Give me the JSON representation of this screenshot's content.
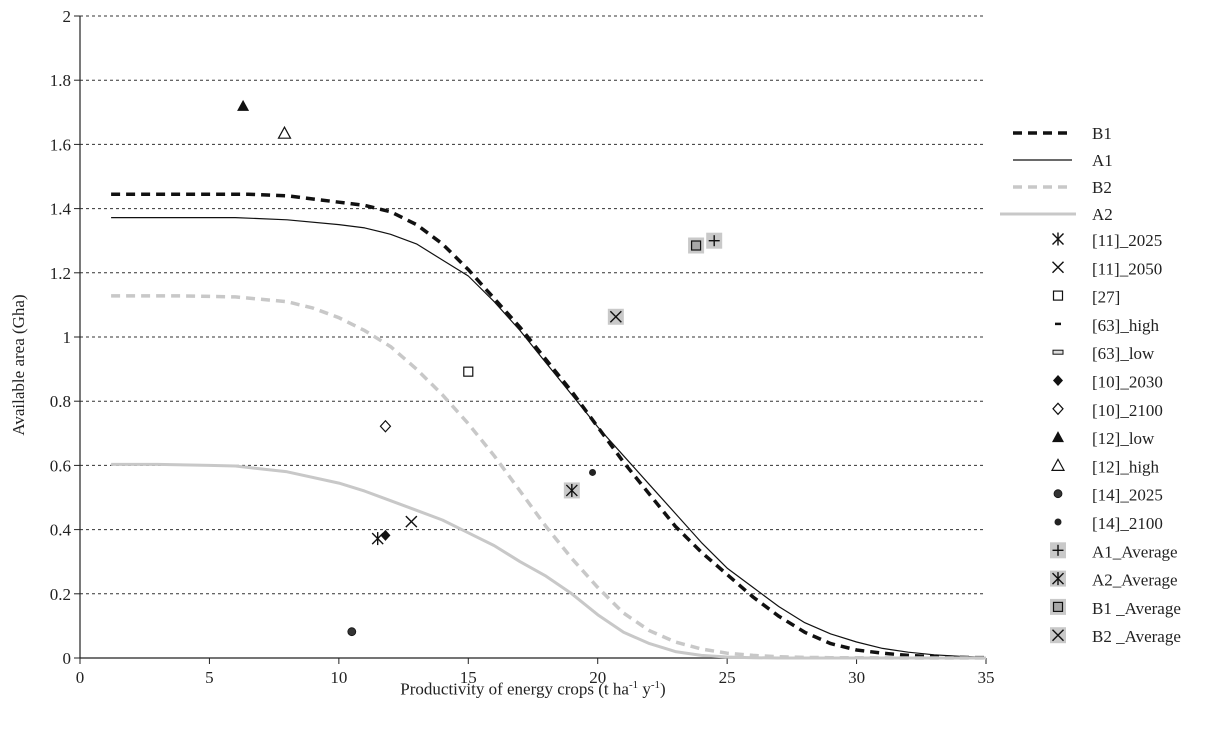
{
  "chart_data": {
    "type": "scatter",
    "xlabel_parts": {
      "pre": "Productivity of energy crops (t ha",
      "sup1": "-1",
      "mid": " y",
      "sup2": "-1",
      "post": ")"
    },
    "ylabel": "Available area (Gha)",
    "xlim": [
      0,
      35
    ],
    "ylim": [
      0,
      2
    ],
    "xticks": [
      "0",
      "5",
      "10",
      "15",
      "20",
      "25",
      "30",
      "35"
    ],
    "yticks": [
      "0",
      "0.2",
      "0.4",
      "0.6",
      "0.8",
      "1",
      "1.2",
      "1.4",
      "1.6",
      "1.8",
      "2"
    ],
    "grid": "horizontal-dashed",
    "legend_position": "right",
    "series": [
      {
        "name": "B1",
        "kind": "line",
        "style": "dashed-black",
        "x": [
          1.2,
          4,
          6.5,
          8,
          10,
          11,
          12,
          13,
          14,
          15,
          16,
          17,
          18,
          19,
          20,
          21,
          22,
          23,
          24,
          25,
          26,
          27,
          28,
          29,
          30,
          31,
          32,
          33,
          34,
          35
        ],
        "y": [
          1.445,
          1.445,
          1.445,
          1.44,
          1.42,
          1.41,
          1.39,
          1.35,
          1.29,
          1.21,
          1.12,
          1.03,
          0.93,
          0.83,
          0.72,
          0.61,
          0.51,
          0.41,
          0.33,
          0.26,
          0.19,
          0.13,
          0.08,
          0.045,
          0.025,
          0.015,
          0.008,
          0.004,
          0.002,
          0.001
        ]
      },
      {
        "name": "A1",
        "kind": "line",
        "style": "solid-black",
        "x": [
          1.2,
          4,
          6,
          8,
          10,
          11,
          12,
          13,
          14,
          15,
          16,
          17,
          18,
          19,
          20,
          21,
          22,
          23,
          24,
          25,
          26,
          27,
          28,
          29,
          30,
          31,
          32,
          33,
          34,
          35
        ],
        "y": [
          1.372,
          1.372,
          1.372,
          1.365,
          1.35,
          1.34,
          1.32,
          1.29,
          1.24,
          1.19,
          1.11,
          1.02,
          0.92,
          0.82,
          0.72,
          0.63,
          0.54,
          0.45,
          0.36,
          0.28,
          0.22,
          0.16,
          0.11,
          0.075,
          0.05,
          0.03,
          0.018,
          0.01,
          0.005,
          0.002
        ]
      },
      {
        "name": "B2",
        "kind": "line",
        "style": "dashed-gray",
        "x": [
          1.2,
          4,
          6,
          8,
          9,
          10,
          11,
          12,
          13,
          14,
          15,
          16,
          17,
          18,
          19,
          20,
          21,
          22,
          23,
          24,
          25,
          26,
          27,
          28,
          29,
          30,
          32,
          35
        ],
        "y": [
          1.128,
          1.128,
          1.125,
          1.11,
          1.09,
          1.06,
          1.02,
          0.97,
          0.9,
          0.82,
          0.73,
          0.63,
          0.52,
          0.41,
          0.31,
          0.22,
          0.14,
          0.085,
          0.05,
          0.028,
          0.015,
          0.008,
          0.004,
          0.002,
          0.001,
          0.001,
          0.0,
          0.0
        ]
      },
      {
        "name": "A2",
        "kind": "line",
        "style": "solid-gray",
        "x": [
          1.2,
          3,
          5,
          6,
          8,
          10,
          11,
          12,
          13,
          14,
          15,
          16,
          17,
          18,
          19,
          20,
          21,
          22,
          23,
          24,
          25,
          26,
          27,
          30,
          35
        ],
        "y": [
          0.603,
          0.603,
          0.6,
          0.598,
          0.58,
          0.545,
          0.52,
          0.49,
          0.46,
          0.43,
          0.39,
          0.35,
          0.3,
          0.255,
          0.2,
          0.135,
          0.08,
          0.045,
          0.02,
          0.008,
          0.003,
          0.001,
          0.0,
          0.0,
          0.0
        ]
      },
      {
        "name": "[11]_2025",
        "kind": "point",
        "marker": "asterisk",
        "x": [
          11.5
        ],
        "y": [
          0.372
        ]
      },
      {
        "name": "[11]_2050",
        "kind": "point",
        "marker": "x",
        "x": [
          12.8
        ],
        "y": [
          0.425
        ]
      },
      {
        "name": "[27]",
        "kind": "point",
        "marker": "square-open",
        "x": [
          15.0
        ],
        "y": [
          0.892
        ]
      },
      {
        "name": "[63]_high",
        "kind": "point",
        "marker": "dash",
        "x": [],
        "y": []
      },
      {
        "name": "[63]_low",
        "kind": "point",
        "marker": "dash-gray",
        "x": [],
        "y": []
      },
      {
        "name": "[10]_2030",
        "kind": "point",
        "marker": "diamond-filled",
        "x": [
          11.8
        ],
        "y": [
          0.382
        ]
      },
      {
        "name": "[10]_2100",
        "kind": "point",
        "marker": "diamond-open",
        "x": [
          11.8
        ],
        "y": [
          0.722
        ]
      },
      {
        "name": "[12]_low",
        "kind": "point",
        "marker": "triangle-filled",
        "x": [
          6.3
        ],
        "y": [
          1.72
        ]
      },
      {
        "name": "[12]_high",
        "kind": "point",
        "marker": "triangle-open",
        "x": [
          7.9
        ],
        "y": [
          1.635
        ]
      },
      {
        "name": "[14]_2025",
        "kind": "point",
        "marker": "circle-dark",
        "x": [
          10.5
        ],
        "y": [
          0.082
        ]
      },
      {
        "name": "[14]_2100",
        "kind": "point",
        "marker": "circle-dark-small",
        "x": [
          19.8
        ],
        "y": [
          0.578
        ]
      },
      {
        "name": "A1_Average",
        "kind": "point",
        "marker": "plus-on-gray",
        "x": [
          24.5
        ],
        "y": [
          1.3
        ]
      },
      {
        "name": "A2_Average",
        "kind": "point",
        "marker": "asterisk-on-gray",
        "x": [
          19.0
        ],
        "y": [
          0.522
        ]
      },
      {
        "name": "B1 _Average",
        "kind": "point",
        "marker": "square-gray",
        "x": [
          23.8
        ],
        "y": [
          1.285
        ]
      },
      {
        "name": "B2 _Average",
        "kind": "point",
        "marker": "x-on-gray",
        "x": [
          20.7
        ],
        "y": [
          1.063
        ]
      }
    ]
  }
}
